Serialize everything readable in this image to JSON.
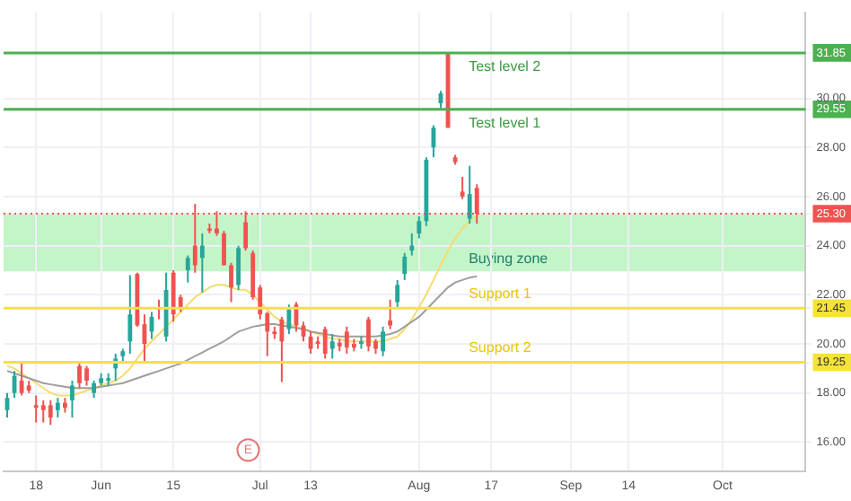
{
  "chart_data": {
    "type": "candlestick",
    "categories": [
      null,
      null,
      null,
      null,
      "18",
      null,
      null,
      null,
      null,
      null,
      null,
      null,
      null,
      "Jun",
      null,
      null,
      null,
      null,
      null,
      null,
      null,
      null,
      null,
      "15",
      null,
      null,
      null,
      null,
      null,
      null,
      null,
      null,
      null,
      null,
      null,
      "Jul",
      null,
      null,
      null,
      null,
      null,
      null,
      "13",
      null,
      null,
      null,
      null,
      null,
      null,
      null,
      null,
      null,
      null,
      null,
      null,
      null,
      null,
      "Aug",
      null,
      null,
      null,
      null,
      null,
      null,
      null,
      null,
      null,
      "17",
      null,
      null,
      null,
      null,
      null,
      null,
      null,
      null,
      null,
      null,
      "Sep",
      null,
      null,
      null,
      null,
      null,
      null,
      null,
      "14",
      null,
      null,
      null,
      null,
      null,
      null,
      null,
      null,
      null,
      null,
      null,
      null,
      "Oct",
      null,
      null,
      null,
      null,
      null,
      null,
      null,
      null,
      null,
      null,
      null
    ],
    "ohlc": [
      [
        17.3,
        18.0,
        17.0,
        17.8
      ],
      [
        18.0,
        18.9,
        17.8,
        18.7
      ],
      [
        18.5,
        19.2,
        17.9,
        18.0
      ],
      [
        18.3,
        18.5,
        18.0,
        18.1
      ],
      [
        17.5,
        17.9,
        16.8,
        17.4
      ],
      [
        17.5,
        17.7,
        16.8,
        17.3
      ],
      [
        17.5,
        17.7,
        16.7,
        17.0
      ],
      [
        17.3,
        17.8,
        17.0,
        17.6
      ],
      [
        17.6,
        17.8,
        17.2,
        17.4
      ],
      [
        17.7,
        18.5,
        17.0,
        18.3
      ],
      [
        19.1,
        19.3,
        18.2,
        18.4
      ],
      [
        19.0,
        19.1,
        18.3,
        18.5
      ],
      [
        18.0,
        18.5,
        17.8,
        18.4
      ],
      [
        18.4,
        18.8,
        18.3,
        18.6
      ],
      [
        18.5,
        18.8,
        18.3,
        18.6
      ],
      [
        19.0,
        19.6,
        18.5,
        19.4
      ],
      [
        19.5,
        19.8,
        19.3,
        19.7
      ],
      [
        20.1,
        22.8,
        19.6,
        21.2
      ],
      [
        22.85,
        22.9,
        20.7,
        20.75
      ],
      [
        20.8,
        21.2,
        19.3,
        20.0
      ],
      [
        20.5,
        21.3,
        20.2,
        21.1
      ],
      [
        21.5,
        21.8,
        21.0,
        21.4
      ],
      [
        20.3,
        22.9,
        20.1,
        22.2
      ],
      [
        22.9,
        23.0,
        20.9,
        21.2
      ],
      [
        21.9,
        22.0,
        21.3,
        21.5
      ],
      [
        23.0,
        23.6,
        22.5,
        23.5
      ],
      [
        24.0,
        25.7,
        22.9,
        23.2
      ],
      [
        23.5,
        24.5,
        22.1,
        24.0
      ],
      [
        24.7,
        24.9,
        24.5,
        24.6
      ],
      [
        24.7,
        25.4,
        24.4,
        24.5
      ],
      [
        24.5,
        24.6,
        23.2,
        23.2
      ],
      [
        23.2,
        23.3,
        21.7,
        22.3
      ],
      [
        22.4,
        24.0,
        22.2,
        23.9
      ],
      [
        24.95,
        25.4,
        23.8,
        23.9
      ],
      [
        23.7,
        23.8,
        21.8,
        21.9
      ],
      [
        22.3,
        22.4,
        21.0,
        21.2
      ],
      [
        21.25,
        21.3,
        19.5,
        20.5
      ],
      [
        20.5,
        20.7,
        20.2,
        20.4
      ],
      [
        21.0,
        21.1,
        18.45,
        20.1
      ],
      [
        20.6,
        21.6,
        20.4,
        21.4
      ],
      [
        21.6,
        21.7,
        20.5,
        20.75
      ],
      [
        20.75,
        20.9,
        20.1,
        20.3
      ],
      [
        20.3,
        20.5,
        19.6,
        19.8
      ],
      [
        20.1,
        20.3,
        19.8,
        20.0
      ],
      [
        20.6,
        20.7,
        19.4,
        19.6
      ],
      [
        19.8,
        20.4,
        19.4,
        20.1
      ],
      [
        20.05,
        20.2,
        19.7,
        19.9
      ],
      [
        20.5,
        20.7,
        19.6,
        19.85
      ],
      [
        20.0,
        20.2,
        19.7,
        19.85
      ],
      [
        20.0,
        20.3,
        19.8,
        20.1
      ],
      [
        21.0,
        21.1,
        19.7,
        19.9
      ],
      [
        20.1,
        20.2,
        19.6,
        19.8
      ],
      [
        19.7,
        20.7,
        19.5,
        20.5
      ],
      [
        20.95,
        21.8,
        20.6,
        20.75
      ],
      [
        21.7,
        22.6,
        21.5,
        22.4
      ],
      [
        22.85,
        23.7,
        22.6,
        23.55
      ],
      [
        23.8,
        24.5,
        23.6,
        24.0
      ],
      [
        24.5,
        25.2,
        24.3,
        25.0
      ],
      [
        25.0,
        27.6,
        24.8,
        27.5
      ],
      [
        28.0,
        28.9,
        27.6,
        28.8
      ],
      [
        29.8,
        30.3,
        29.6,
        30.2
      ],
      [
        31.85,
        31.85,
        28.8,
        28.8
      ],
      [
        27.6,
        27.7,
        27.3,
        27.4
      ],
      [
        26.2,
        26.8,
        25.9,
        26.0
      ],
      [
        25.1,
        27.25,
        24.9,
        26.1
      ],
      [
        26.35,
        26.5,
        24.9,
        25.3
      ],
      null,
      null,
      null,
      null,
      null,
      null,
      null,
      null,
      null,
      null,
      null,
      null,
      null,
      null,
      null,
      null,
      null,
      null,
      null,
      null,
      null,
      null,
      null,
      null,
      null,
      null,
      null,
      null,
      null,
      null,
      null,
      null,
      null,
      null,
      null,
      null,
      null,
      null,
      null,
      null,
      null,
      null,
      null,
      null,
      null
    ],
    "colors": [
      "#26a69a",
      "#26a69a",
      "#ef5350",
      "#ef5350",
      "#ef5350",
      "#ef5350",
      "#ef5350",
      "#26a69a",
      "#ef5350",
      "#26a69a",
      "#ef5350",
      "#ef5350",
      "#26a69a",
      "#26a69a",
      "#26a69a",
      "#26a69a",
      "#26a69a",
      "#26a69a",
      "#ef5350",
      "#ef5350",
      "#26a69a",
      "#ef5350",
      "#26a69a",
      "#ef5350",
      "#ef5350",
      "#26a69a",
      "#ef5350",
      "#26a69a",
      "#ef5350",
      "#ef5350",
      "#ef5350",
      "#ef5350",
      "#26a69a",
      "#ef5350",
      "#ef5350",
      "#ef5350",
      "#ef5350",
      "#ef5350",
      "#ef5350",
      "#26a69a",
      "#ef5350",
      "#ef5350",
      "#ef5350",
      "#ef5350",
      "#ef5350",
      "#26a69a",
      "#ef5350",
      "#ef5350",
      "#ef5350",
      "#26a69a",
      "#ef5350",
      "#ef5350",
      "#26a69a",
      "#ef5350",
      "#26a69a",
      "#26a69a",
      "#26a69a",
      "#26a69a",
      "#26a69a",
      "#26a69a",
      "#26a69a",
      "#ef5350",
      "#ef5350",
      "#ef5350",
      "#26a69a",
      "#ef5350",
      null,
      null,
      null,
      null,
      null,
      null,
      null,
      null,
      null,
      null,
      null,
      null,
      null,
      null,
      null,
      null,
      null,
      null,
      null,
      null,
      null,
      null,
      null,
      null,
      null,
      null,
      null,
      null,
      null,
      null,
      null,
      null,
      null,
      null,
      null,
      null,
      null,
      null,
      null,
      null,
      null,
      null,
      null,
      null,
      null
    ],
    "series": [
      {
        "type": "line",
        "color": "#9e9e9e",
        "values": [
          18.9,
          18.8,
          18.7,
          18.6,
          18.5,
          18.4,
          18.35,
          18.3,
          18.25,
          18.2,
          18.2,
          18.2,
          18.2,
          18.25,
          18.3,
          18.35,
          18.4,
          18.5,
          18.6,
          18.7,
          18.8,
          18.9,
          19.0,
          19.1,
          19.2,
          19.35,
          19.5,
          19.65,
          19.8,
          19.95,
          20.1,
          20.3,
          20.5,
          20.6,
          20.7,
          20.75,
          20.8,
          20.8,
          20.75,
          20.7,
          20.65,
          20.6,
          20.5,
          20.45,
          20.4,
          20.35,
          20.3,
          20.3,
          20.3,
          20.3,
          20.3,
          20.3,
          20.35,
          20.4,
          20.5,
          20.7,
          20.9,
          21.1,
          21.4,
          21.7,
          22.0,
          22.3,
          22.5,
          22.6,
          22.7,
          22.75,
          null,
          null,
          null,
          null,
          null,
          null,
          null,
          null,
          null,
          null,
          null,
          null,
          null,
          null,
          null,
          null,
          null,
          null,
          null,
          null,
          null,
          null,
          null,
          null,
          null,
          null,
          null,
          null,
          null,
          null,
          null,
          null,
          null,
          null,
          null,
          null,
          null,
          null,
          null,
          null,
          null,
          null,
          null,
          null,
          null
        ]
      },
      {
        "type": "line",
        "color": "#f5dc6e",
        "values": [
          19.1,
          19.0,
          18.8,
          18.6,
          18.4,
          18.2,
          18.0,
          17.9,
          17.9,
          17.9,
          18.0,
          18.1,
          18.2,
          18.3,
          18.4,
          18.5,
          18.7,
          19.0,
          19.4,
          19.8,
          20.1,
          20.4,
          20.7,
          21.0,
          21.3,
          21.6,
          21.9,
          22.1,
          22.3,
          22.4,
          22.4,
          22.3,
          22.2,
          22.2,
          22.0,
          21.7,
          21.4,
          21.1,
          20.9,
          20.8,
          20.7,
          20.6,
          20.5,
          20.4,
          20.3,
          20.2,
          20.2,
          20.1,
          20.1,
          20.1,
          20.1,
          20.1,
          20.1,
          20.2,
          20.3,
          20.6,
          21.0,
          21.5,
          22.0,
          22.6,
          23.2,
          23.8,
          24.3,
          24.7,
          25.0,
          25.2,
          null,
          null,
          null,
          null,
          null,
          null,
          null,
          null,
          null,
          null,
          null,
          null,
          null,
          null,
          null,
          null,
          null,
          null,
          null,
          null,
          null,
          null,
          null,
          null,
          null,
          null,
          null,
          null,
          null,
          null,
          null,
          null,
          null,
          null,
          null,
          null,
          null,
          null,
          null,
          null,
          null,
          null,
          null,
          null,
          null
        ]
      }
    ],
    "ylim": [
      14.8,
      33.5
    ],
    "yticks": [
      {
        "value": 16,
        "label": "16.00"
      },
      {
        "value": 18,
        "label": "18.00"
      },
      19.25,
      {
        "value": 20,
        "label": "20.00"
      },
      21.45,
      {
        "value": 22,
        "label": "22.00"
      },
      {
        "value": 24,
        "label": "24.00"
      },
      {
        "value": 25.3,
        "label": "25.30"
      },
      {
        "value": 26,
        "label": "26.00"
      },
      {
        "value": 28,
        "label": "28.00"
      },
      29.55,
      {
        "value": 30,
        "label": "30.00"
      },
      31.85
    ],
    "ref_lines": [
      {
        "axis": "y",
        "value": 31.85,
        "label": "Test level 2",
        "color": "#4caf50"
      },
      {
        "axis": "y",
        "value": 29.55,
        "label": "Test level 1",
        "color": "#4caf50"
      },
      {
        "axis": "y",
        "value": 25.3,
        "color": "#ef5350",
        "line_style": "dotted"
      },
      {
        "axis": "y",
        "value": 21.45,
        "label": "Support 1",
        "color": "#f5e23c"
      },
      {
        "axis": "y",
        "value": 19.25,
        "label": "Support 2",
        "color": "#f5e23c"
      }
    ],
    "bands": [
      {
        "axis": "y",
        "from": 22.95,
        "to": 25.3,
        "label": "Buying zone",
        "color": "#c4f5c8"
      }
    ],
    "annotations": [
      "E"
    ],
    "grid": true
  }
}
